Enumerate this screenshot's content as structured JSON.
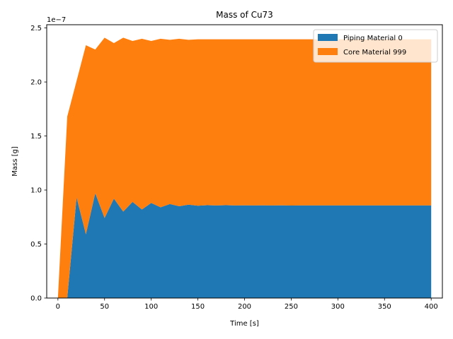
{
  "chart_data": {
    "type": "area",
    "stacked": true,
    "title": "Mass of Cu73",
    "xlabel": "Time [s]",
    "ylabel": "Mass [g]",
    "y_offset_text": "1e−7",
    "xlim": [
      -12,
      412
    ],
    "ylim": [
      0,
      2.53
    ],
    "xticks": [
      0,
      50,
      100,
      150,
      200,
      250,
      300,
      350,
      400
    ],
    "yticks": [
      0.0,
      0.5,
      1.0,
      1.5,
      2.0,
      2.5
    ],
    "ytick_labels": [
      "0.0",
      "0.5",
      "1.0",
      "1.5",
      "2.0",
      "2.5"
    ],
    "legend_position": "upper right",
    "x": [
      0,
      10,
      20,
      30,
      40,
      50,
      60,
      70,
      80,
      90,
      100,
      110,
      120,
      130,
      140,
      150,
      160,
      170,
      180,
      190,
      200,
      210,
      220,
      230,
      240,
      250,
      260,
      270,
      280,
      290,
      300,
      310,
      320,
      330,
      340,
      350,
      360,
      370,
      380,
      390,
      400
    ],
    "series": [
      {
        "name": "Piping Material 0",
        "color": "#1f77b4",
        "values": [
          0,
          0,
          0.93,
          0.59,
          0.97,
          0.74,
          0.92,
          0.8,
          0.89,
          0.82,
          0.88,
          0.84,
          0.87,
          0.85,
          0.865,
          0.855,
          0.86,
          0.857,
          0.86,
          0.857,
          0.858,
          0.857,
          0.858,
          0.857,
          0.858,
          0.856,
          0.857,
          0.857,
          0.857,
          0.857,
          0.857,
          0.857,
          0.857,
          0.857,
          0.857,
          0.857,
          0.857,
          0.857,
          0.857,
          0.857,
          0.857
        ]
      },
      {
        "name": "Core Material 999",
        "color": "#ff7f0e",
        "values": [
          0,
          1.68,
          1.08,
          1.75,
          1.33,
          1.67,
          1.44,
          1.61,
          1.49,
          1.58,
          1.5,
          1.56,
          1.52,
          1.55,
          1.525,
          1.54,
          1.535,
          1.538,
          1.535,
          1.538,
          1.537,
          1.538,
          1.537,
          1.538,
          1.537,
          1.539,
          1.538,
          1.538,
          1.538,
          1.538,
          1.538,
          1.538,
          1.538,
          1.538,
          1.538,
          1.538,
          1.538,
          1.538,
          1.538,
          1.538,
          1.538
        ]
      }
    ]
  }
}
